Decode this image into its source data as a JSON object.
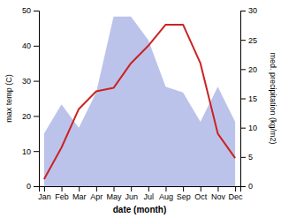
{
  "chart_data": {
    "type": "line",
    "xlabel": "date (month)",
    "ylabel": "max temp (C)",
    "y2label": "med. precipitation (kg/m2)",
    "categories": [
      "Jan",
      "Feb",
      "Mar",
      "Apr",
      "May",
      "Jun",
      "Jul",
      "Aug",
      "Sep",
      "Oct",
      "Nov",
      "Dec"
    ],
    "series": [
      {
        "type": "area",
        "axis": "y2",
        "color": "#b0b8e8",
        "values": [
          9,
          14,
          10,
          16,
          29,
          29,
          25,
          17,
          16,
          11,
          17,
          11
        ]
      },
      {
        "type": "line",
        "color": "#cc2222",
        "values": [
          2,
          11,
          22,
          27,
          28,
          35,
          40,
          46,
          46,
          35,
          15,
          8
        ]
      }
    ],
    "ylim": [
      0,
      50
    ],
    "yticks": [
      0,
      10,
      20,
      30,
      40,
      50
    ],
    "y2lim": [
      0,
      30
    ],
    "y2ticks": [
      0,
      5,
      10,
      15,
      20,
      25,
      30
    ],
    "grid": false
  }
}
